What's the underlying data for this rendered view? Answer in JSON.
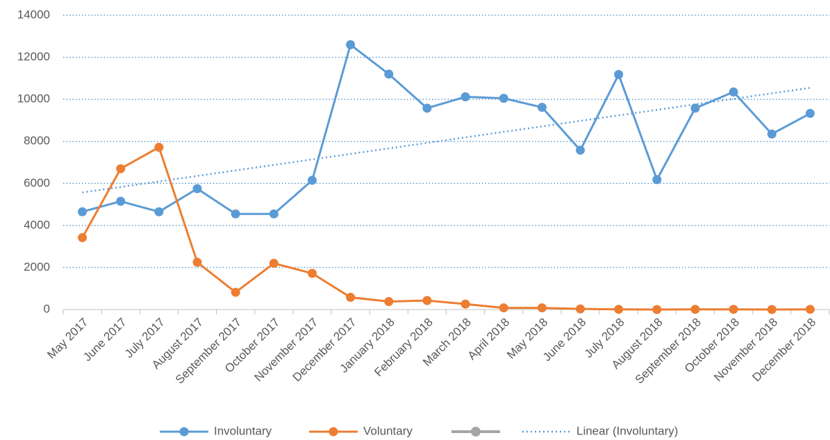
{
  "chart_data": {
    "type": "line",
    "categories": [
      "May 2017",
      "June 2017",
      "July 2017",
      "August 2017",
      "September 2017",
      "October 2017",
      "November 2017",
      "December 2017",
      "January 2018",
      "February 2018",
      "March 2018",
      "April 2018",
      "May 2018",
      "June 2018",
      "July 2018",
      "August 2018",
      "September 2018",
      "October 2018",
      "November 2018",
      "December 2018"
    ],
    "series": [
      {
        "name": "Involuntary",
        "color": "#5b9bd5",
        "values": [
          4650,
          5150,
          4650,
          5750,
          4550,
          4550,
          6150,
          12600,
          11200,
          9580,
          10120,
          10050,
          9620,
          7580,
          11180,
          6180,
          9580,
          10350,
          8350,
          9330
        ]
      },
      {
        "name": "Voluntary",
        "color": "#ed7d31",
        "values": [
          3420,
          6700,
          7720,
          2250,
          820,
          2200,
          1720,
          580,
          380,
          430,
          260,
          80,
          80,
          30,
          10,
          0,
          10,
          10,
          0,
          10
        ]
      }
    ],
    "trendline": {
      "name": "Linear (Involuntary)",
      "series": 0,
      "color": "#5b9bd5"
    },
    "ylim": [
      0,
      14000
    ],
    "yticks": [
      0,
      2000,
      4000,
      6000,
      8000,
      10000,
      12000,
      14000
    ],
    "grid": true
  }
}
